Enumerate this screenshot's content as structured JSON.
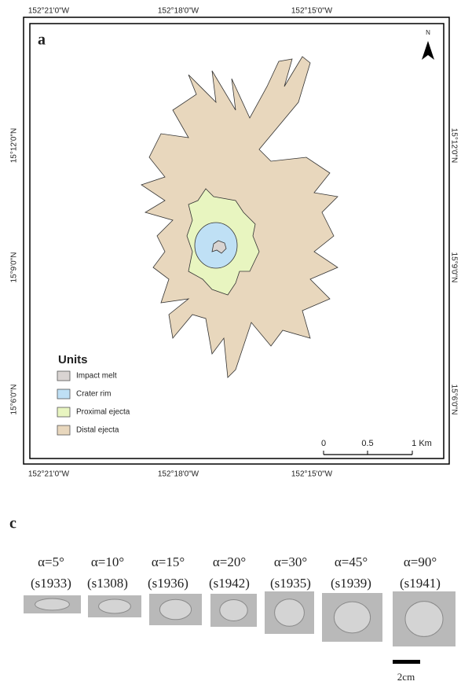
{
  "panel_a": {
    "label": "a",
    "north": "N",
    "lon_labels": [
      "152°21'0\"W",
      "152°18'0\"W",
      "152°15'0\"W"
    ],
    "lat_labels": [
      "15°12'0\"N",
      "15°9'0\"N",
      "15°6'0\"N"
    ],
    "legend_title": "Units",
    "legend": [
      {
        "label": "Impact melt",
        "color": "#d9d4d2"
      },
      {
        "label": "Crater rim",
        "color": "#bfe0f5"
      },
      {
        "label": "Proximal ejecta",
        "color": "#e8f5c0"
      },
      {
        "label": "Distal ejecta",
        "color": "#e8d7bd"
      }
    ],
    "scale_labels": [
      "0",
      "0.5",
      "1 Km"
    ]
  },
  "panel_c": {
    "label": "c",
    "samples": [
      {
        "angle": "α=5°",
        "id": "(s1933)"
      },
      {
        "angle": "α=10°",
        "id": "(s1308)"
      },
      {
        "angle": "α=15°",
        "id": "(s1936)"
      },
      {
        "angle": "α=20°",
        "id": "(s1942)"
      },
      {
        "angle": "α=30°",
        "id": "(s1935)"
      },
      {
        "angle": "α=45°",
        "id": "(s1939)"
      },
      {
        "angle": "α=90°",
        "id": "(s1941)"
      }
    ],
    "scale_label": "2cm"
  }
}
